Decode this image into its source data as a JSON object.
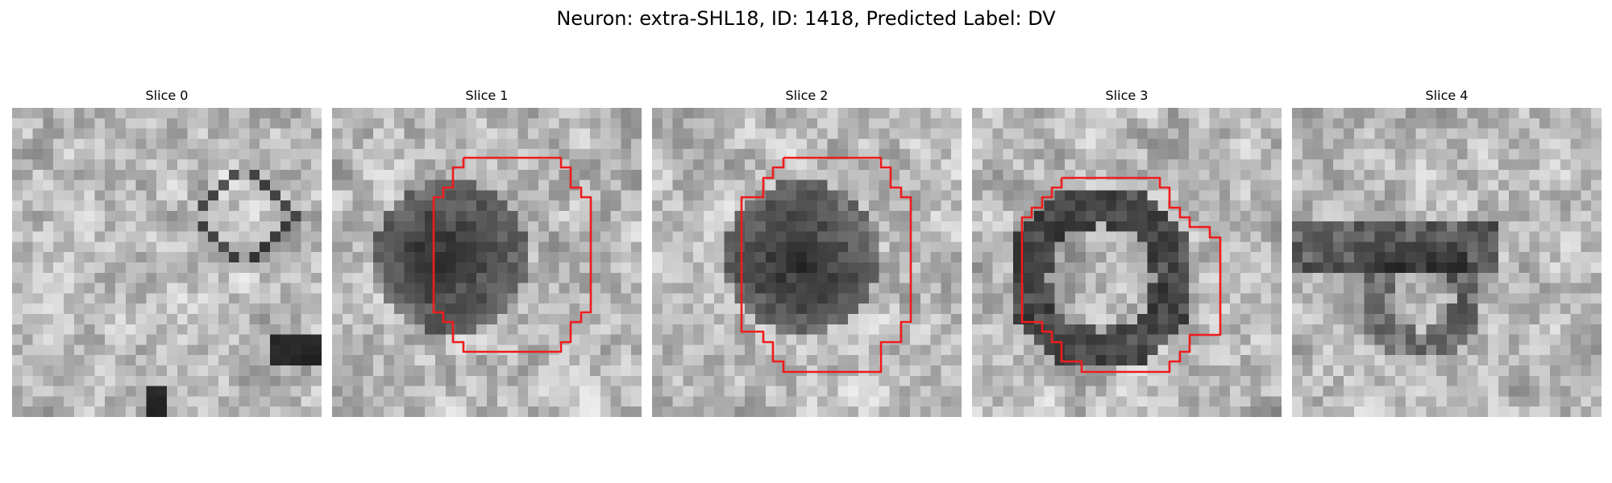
{
  "figure": {
    "title": "Neuron: extra-SHL18, ID: 1418, Predicted Label: DV"
  },
  "colors": {
    "outline": "#ee1c1c",
    "colormap": "gray"
  },
  "slices": [
    {
      "label": "Slice 0",
      "has_outline": false,
      "pattern": "texture",
      "seed": 11
    },
    {
      "label": "Slice 1",
      "has_outline": true,
      "pattern": "dark-blob",
      "seed": 23
    },
    {
      "label": "Slice 2",
      "has_outline": true,
      "pattern": "dark-blob",
      "seed": 37
    },
    {
      "label": "Slice 3",
      "has_outline": true,
      "pattern": "ring",
      "seed": 41
    },
    {
      "label": "Slice 4",
      "has_outline": false,
      "pattern": "band",
      "seed": 53
    }
  ]
}
